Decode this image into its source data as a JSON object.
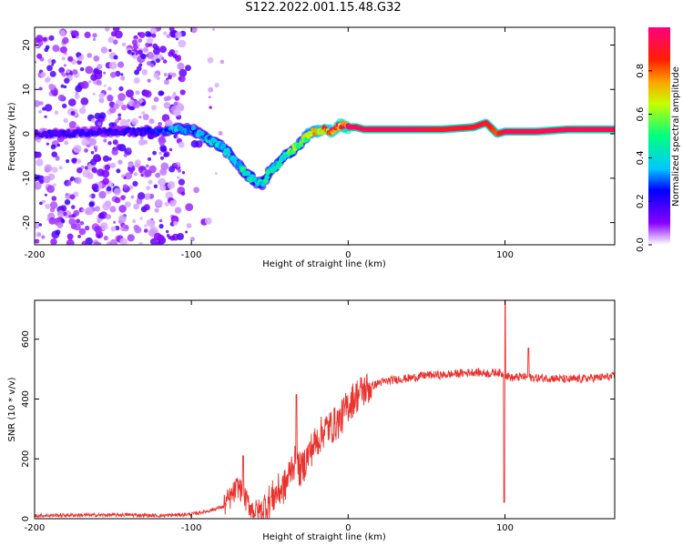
{
  "title": "S122.2022.001.15.48.G32",
  "colorbar": {
    "label": "Normalized spectral amplitude",
    "range": [
      0,
      1
    ],
    "ticks": [
      "0.0",
      "0.2",
      "0.4",
      "0.6",
      "0.8"
    ]
  },
  "chart_data": [
    {
      "type": "heatmap",
      "xlabel": "Height of straight line (km)",
      "ylabel": "Frequency (Hz)",
      "xlim": [
        -200,
        170
      ],
      "ylim": [
        -25,
        24
      ],
      "xticks": [
        "-200",
        "-100",
        "0",
        "100"
      ],
      "yticks": [
        "-20",
        "-10",
        "0",
        "10",
        "20"
      ],
      "ridge": {
        "x": [
          -200,
          -180,
          -160,
          -140,
          -120,
          -110,
          -100,
          -90,
          -80,
          -75,
          -70,
          -65,
          -60,
          -55,
          -50,
          -45,
          -40,
          -35,
          -30,
          -25,
          -20,
          -15,
          -10,
          -5,
          0,
          5,
          10,
          20,
          40,
          60,
          80,
          88,
          95,
          100,
          120,
          140,
          170
        ],
        "y": [
          0,
          0,
          0.5,
          0.5,
          0.5,
          1,
          1,
          -1,
          -3,
          -5,
          -7,
          -9,
          -10.5,
          -11.5,
          -8.5,
          -7,
          -5,
          -3.5,
          -2,
          0,
          0.5,
          1,
          0.5,
          2,
          1.5,
          1.5,
          1,
          1,
          1,
          1,
          1.5,
          2.5,
          0,
          0.5,
          0.5,
          1,
          1
        ],
        "amplitude": [
          0.15,
          0.2,
          0.2,
          0.2,
          0.25,
          0.35,
          0.3,
          0.35,
          0.45,
          0.4,
          0.4,
          0.45,
          0.45,
          0.4,
          0.45,
          0.45,
          0.5,
          0.55,
          0.6,
          0.7,
          0.75,
          0.8,
          0.85,
          0.9,
          0.95,
          0.95,
          0.95,
          0.95,
          0.95,
          0.9,
          0.9,
          0.9,
          0.8,
          0.95,
          0.95,
          0.95,
          0.95
        ]
      },
      "noise_region_x": [
        -200,
        -105
      ]
    },
    {
      "type": "line",
      "xlabel": "Height of straight line (km)",
      "ylabel": "SNR (10 * v/v)",
      "xlim": [
        -200,
        170
      ],
      "ylim": [
        0,
        730
      ],
      "xticks": [
        "-200",
        "-100",
        "0",
        "100"
      ],
      "yticks": [
        "0",
        "200",
        "400",
        "600"
      ],
      "color": "#e8322e",
      "series": [
        {
          "x": [
            -200,
            -180,
            -160,
            -140,
            -120,
            -100,
            -90,
            -80,
            -75,
            -70,
            -65,
            -60,
            -55,
            -50,
            -45,
            -40,
            -35,
            -30,
            -25,
            -20,
            -15,
            -10,
            -5,
            0,
            5,
            10,
            20,
            30,
            40,
            50,
            60,
            70,
            80,
            90,
            95,
            100,
            105,
            110,
            120,
            130,
            140,
            150,
            160,
            170
          ],
          "y": [
            10,
            12,
            12,
            13,
            10,
            15,
            25,
            40,
            70,
            110,
            60,
            25,
            30,
            60,
            90,
            110,
            190,
            160,
            220,
            260,
            300,
            310,
            330,
            380,
            410,
            430,
            455,
            465,
            470,
            480,
            480,
            485,
            490,
            485,
            490,
            480,
            470,
            475,
            470,
            470,
            465,
            468,
            472,
            475
          ]
        }
      ],
      "spikes": [
        {
          "x": -67,
          "y": 210
        },
        {
          "x": -33,
          "y": 415
        },
        {
          "x": 100,
          "y": 730
        },
        {
          "x": 99.5,
          "y": 55
        },
        {
          "x": 115,
          "y": 570
        }
      ]
    }
  ]
}
